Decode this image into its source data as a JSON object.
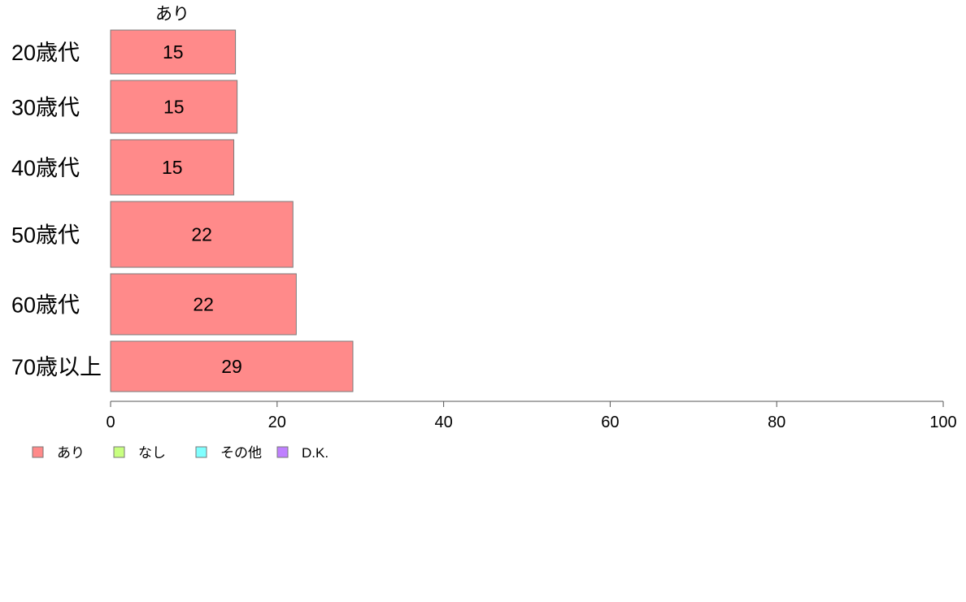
{
  "chart_data": {
    "type": "bar",
    "orientation": "horizontal",
    "stacked": true,
    "categories": [
      "20歳代",
      "30歳代",
      "40歳代",
      "50歳代",
      "60歳代",
      "70歳以上"
    ],
    "series": [
      {
        "name": "あり",
        "color": "#ff8a8a",
        "values": [
          15,
          15.2,
          14.8,
          21.9,
          22.3,
          29.1
        ],
        "value_labels": [
          "15",
          "15",
          "15",
          "22",
          "22",
          "29"
        ]
      },
      {
        "name": "なし",
        "color": "#c8ff80",
        "values": [
          0,
          0,
          0,
          0,
          0,
          0
        ]
      },
      {
        "name": "その他",
        "color": "#80ffff",
        "values": [
          0,
          0,
          0,
          0,
          0,
          0
        ]
      },
      {
        "name": "D.K.",
        "color": "#bf80ff",
        "values": [
          0,
          0,
          0,
          0,
          0,
          0
        ]
      }
    ],
    "series_header": "あり",
    "xlim": [
      0,
      100
    ],
    "xticks": [
      0,
      20,
      40,
      60,
      80,
      100
    ],
    "grid": false,
    "legend_position": "bottom-left"
  }
}
